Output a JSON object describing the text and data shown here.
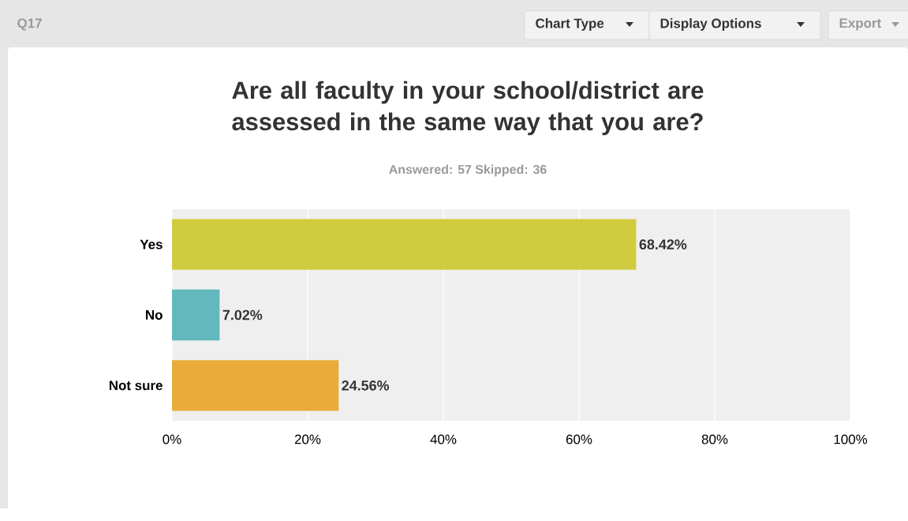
{
  "chart_data": {
    "type": "bar",
    "orientation": "horizontal",
    "title": "Are all faculty in your school/district are assessed in the same way that you are?",
    "subtitle": "Answered: 57    Skipped: 36",
    "annotations": [
      "Q17",
      "Chart Type",
      "Display Options",
      "Export"
    ],
    "categories": [
      "Yes",
      "No",
      "Not sure"
    ],
    "values": [
      68.42,
      7.02,
      24.56
    ],
    "colors": [
      "#d1cc3f",
      "#62b8bd",
      "#eaab3b"
    ],
    "value_labels": [
      "68.42%",
      "7.02%",
      "24.56%"
    ],
    "xlim": [
      0,
      100
    ],
    "xticks": [
      {
        "value": 0,
        "label": "0%"
      },
      {
        "value": 20,
        "label": "20%"
      },
      {
        "value": 40,
        "label": "40%"
      },
      {
        "value": 60,
        "label": "60%"
      },
      {
        "value": 80,
        "label": "80%"
      },
      {
        "value": 100,
        "label": "100%"
      }
    ],
    "grid": "x"
  }
}
